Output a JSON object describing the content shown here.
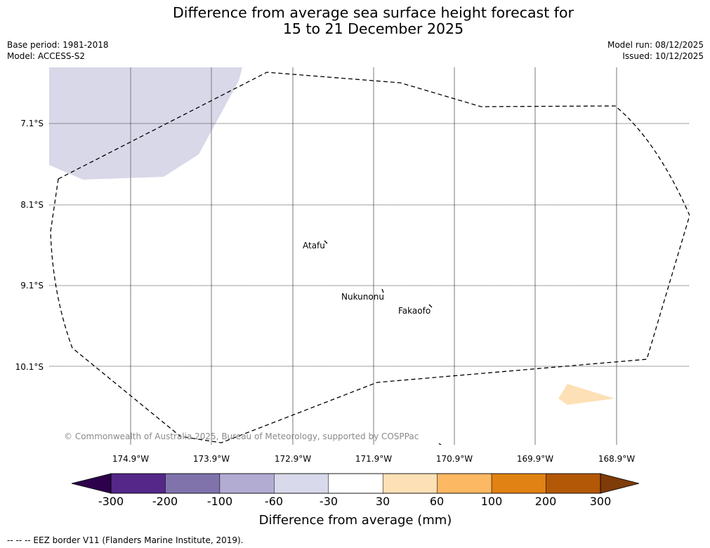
{
  "title": {
    "line1": "Difference from average sea surface height forecast for",
    "line2": "15 to 21 December 2025"
  },
  "info_left": {
    "base_period": "Base period: 1981-2018",
    "model": "Model: ACCESS-S2"
  },
  "info_right": {
    "model_run": "Model run: 08/12/2025",
    "issued": "Issued: 10/12/2025"
  },
  "map": {
    "lat_labels": [
      "7.1°S",
      "8.1°S",
      "9.1°S",
      "10.1°S"
    ],
    "lon_labels": [
      "174.9°W",
      "173.9°W",
      "172.9°W",
      "171.9°W",
      "170.9°W",
      "169.9°W",
      "168.9°W"
    ],
    "places": [
      "Atafu",
      "Nukunonu",
      "Fakaofo"
    ],
    "copyright": "© Commonwealth of Australia 2025, Bureau of Meteorology, supported by COSPPac",
    "shading": [
      {
        "region": "north-west",
        "category": "-60 to -30",
        "color": "#d8d8e9"
      },
      {
        "region": "south-east",
        "category": "30 to 60",
        "color": "#fee0b6"
      }
    ]
  },
  "colorbar": {
    "extend_low_color": "#2d004b",
    "extend_high_color": "#7f3b08",
    "colors": [
      "#542788",
      "#8073ac",
      "#b2abd2",
      "#d8daeb",
      "#ffffff",
      "#fee0b6",
      "#fdb863",
      "#e08214",
      "#b35806"
    ],
    "ticks": [
      "-300",
      "-200",
      "-100",
      "-60",
      "-30",
      "30",
      "60",
      "100",
      "200",
      "300"
    ],
    "label": "Difference from average (mm)"
  },
  "footnote": "-- -- -- EEZ border V11 (Flanders Marine Institute, 2019)."
}
